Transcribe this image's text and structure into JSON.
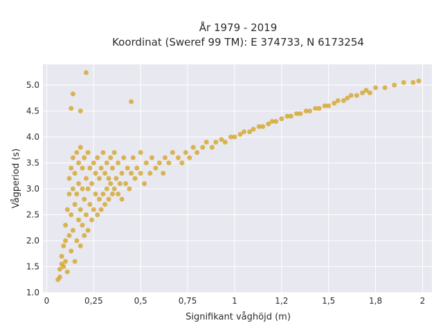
{
  "chart_data": {
    "type": "scatter",
    "title": [
      "År 1979 - 2019",
      "Koordinat (Sweref 99 TM): E 374733, N 6173254"
    ],
    "xlabel": "Signifikant våghöjd (m)",
    "ylabel": "Vågperiod (s)",
    "xlim": [
      -0.02,
      2.05
    ],
    "ylim": [
      1.0,
      5.4
    ],
    "xticks": [
      {
        "value": 0,
        "label": "0"
      },
      {
        "value": 0.25,
        "label": "0,25"
      },
      {
        "value": 0.5,
        "label": "0,5"
      },
      {
        "value": 0.75,
        "label": "0,75"
      },
      {
        "value": 1,
        "label": "1"
      },
      {
        "value": 1.25,
        "label": "1,2"
      },
      {
        "value": 1.5,
        "label": "1,5"
      },
      {
        "value": 1.75,
        "label": "1,8"
      },
      {
        "value": 2,
        "label": "2"
      }
    ],
    "yticks": [
      {
        "value": 1.0,
        "label": "1.0"
      },
      {
        "value": 1.5,
        "label": "1.5"
      },
      {
        "value": 2.0,
        "label": "2.0"
      },
      {
        "value": 2.5,
        "label": "2.5"
      },
      {
        "value": 3.0,
        "label": "3.0"
      },
      {
        "value": 3.5,
        "label": "3.5"
      },
      {
        "value": 4.0,
        "label": "4.0"
      },
      {
        "value": 4.5,
        "label": "4.5"
      },
      {
        "value": 5.0,
        "label": "5.0"
      }
    ],
    "grid": true,
    "marker_color": "#D4A11E",
    "background_color": "#E8E8F0",
    "points": [
      [
        0.06,
        1.25
      ],
      [
        0.07,
        1.3
      ],
      [
        0.07,
        1.45
      ],
      [
        0.08,
        1.55
      ],
      [
        0.08,
        1.7
      ],
      [
        0.09,
        1.5
      ],
      [
        0.09,
        1.9
      ],
      [
        0.1,
        2.0
      ],
      [
        0.1,
        1.6
      ],
      [
        0.1,
        2.3
      ],
      [
        0.11,
        2.6
      ],
      [
        0.11,
        1.4
      ],
      [
        0.12,
        2.9
      ],
      [
        0.12,
        2.1
      ],
      [
        0.12,
        3.2
      ],
      [
        0.13,
        1.8
      ],
      [
        0.13,
        2.5
      ],
      [
        0.13,
        3.4
      ],
      [
        0.14,
        2.2
      ],
      [
        0.14,
        3.0
      ],
      [
        0.14,
        3.6
      ],
      [
        0.15,
        1.6
      ],
      [
        0.15,
        2.7
      ],
      [
        0.15,
        3.3
      ],
      [
        0.16,
        2.0
      ],
      [
        0.16,
        2.9
      ],
      [
        0.16,
        3.7
      ],
      [
        0.17,
        2.4
      ],
      [
        0.17,
        3.1
      ],
      [
        0.17,
        3.5
      ],
      [
        0.18,
        1.9
      ],
      [
        0.18,
        2.6
      ],
      [
        0.18,
        3.8
      ],
      [
        0.19,
        2.3
      ],
      [
        0.19,
        3.0
      ],
      [
        0.19,
        3.4
      ],
      [
        0.2,
        2.1
      ],
      [
        0.2,
        2.8
      ],
      [
        0.2,
        3.6
      ],
      [
        0.21,
        2.5
      ],
      [
        0.21,
        3.2
      ],
      [
        0.22,
        2.2
      ],
      [
        0.22,
        3.0
      ],
      [
        0.22,
        3.7
      ],
      [
        0.23,
        2.7
      ],
      [
        0.23,
        3.4
      ],
      [
        0.24,
        2.4
      ],
      [
        0.24,
        3.1
      ],
      [
        0.25,
        2.6
      ],
      [
        0.25,
        3.5
      ],
      [
        0.26,
        2.9
      ],
      [
        0.26,
        3.3
      ],
      [
        0.27,
        2.5
      ],
      [
        0.27,
        3.6
      ],
      [
        0.28,
        2.8
      ],
      [
        0.28,
        3.2
      ],
      [
        0.29,
        2.6
      ],
      [
        0.29,
        3.4
      ],
      [
        0.3,
        2.9
      ],
      [
        0.3,
        3.7
      ],
      [
        0.31,
        2.7
      ],
      [
        0.31,
        3.3
      ],
      [
        0.32,
        3.0
      ],
      [
        0.32,
        3.5
      ],
      [
        0.33,
        2.8
      ],
      [
        0.33,
        3.2
      ],
      [
        0.34,
        3.1
      ],
      [
        0.34,
        3.6
      ],
      [
        0.35,
        2.9
      ],
      [
        0.35,
        3.4
      ],
      [
        0.36,
        3.0
      ],
      [
        0.36,
        3.7
      ],
      [
        0.37,
        3.2
      ],
      [
        0.38,
        2.9
      ],
      [
        0.38,
        3.5
      ],
      [
        0.39,
        3.1
      ],
      [
        0.4,
        3.3
      ],
      [
        0.4,
        2.8
      ],
      [
        0.41,
        3.6
      ],
      [
        0.42,
        3.1
      ],
      [
        0.43,
        3.4
      ],
      [
        0.44,
        3.0
      ],
      [
        0.45,
        3.3
      ],
      [
        0.46,
        3.6
      ],
      [
        0.47,
        3.2
      ],
      [
        0.48,
        3.4
      ],
      [
        0.5,
        3.3
      ],
      [
        0.5,
        3.7
      ],
      [
        0.52,
        3.1
      ],
      [
        0.53,
        3.5
      ],
      [
        0.55,
        3.3
      ],
      [
        0.56,
        3.6
      ],
      [
        0.58,
        3.4
      ],
      [
        0.6,
        3.5
      ],
      [
        0.62,
        3.3
      ],
      [
        0.63,
        3.6
      ],
      [
        0.65,
        3.5
      ],
      [
        0.67,
        3.7
      ],
      [
        0.7,
        3.6
      ],
      [
        0.72,
        3.5
      ],
      [
        0.74,
        3.7
      ],
      [
        0.76,
        3.6
      ],
      [
        0.78,
        3.8
      ],
      [
        0.8,
        3.7
      ],
      [
        0.83,
        3.8
      ],
      [
        0.85,
        3.9
      ],
      [
        0.88,
        3.8
      ],
      [
        0.9,
        3.9
      ],
      [
        0.93,
        3.95
      ],
      [
        0.95,
        3.9
      ],
      [
        0.98,
        4.0
      ],
      [
        1.0,
        4.0
      ],
      [
        1.03,
        4.05
      ],
      [
        1.05,
        4.1
      ],
      [
        1.08,
        4.1
      ],
      [
        1.1,
        4.15
      ],
      [
        1.13,
        4.2
      ],
      [
        1.15,
        4.2
      ],
      [
        1.18,
        4.25
      ],
      [
        1.2,
        4.3
      ],
      [
        1.22,
        4.3
      ],
      [
        1.25,
        4.35
      ],
      [
        1.28,
        4.4
      ],
      [
        1.3,
        4.4
      ],
      [
        1.33,
        4.45
      ],
      [
        1.35,
        4.45
      ],
      [
        1.38,
        4.5
      ],
      [
        1.4,
        4.5
      ],
      [
        1.43,
        4.55
      ],
      [
        1.45,
        4.55
      ],
      [
        1.48,
        4.6
      ],
      [
        1.5,
        4.6
      ],
      [
        1.53,
        4.65
      ],
      [
        1.55,
        4.7
      ],
      [
        1.58,
        4.7
      ],
      [
        1.6,
        4.75
      ],
      [
        1.62,
        4.8
      ],
      [
        1.65,
        4.8
      ],
      [
        1.68,
        4.85
      ],
      [
        1.7,
        4.9
      ],
      [
        1.72,
        4.85
      ],
      [
        1.75,
        4.95
      ],
      [
        1.8,
        4.95
      ],
      [
        1.85,
        5.0
      ],
      [
        1.9,
        5.05
      ],
      [
        1.95,
        5.05
      ],
      [
        1.98,
        5.08
      ],
      [
        0.21,
        5.24
      ],
      [
        0.14,
        4.83
      ],
      [
        0.13,
        4.55
      ],
      [
        0.18,
        4.5
      ],
      [
        0.45,
        4.68
      ]
    ]
  }
}
